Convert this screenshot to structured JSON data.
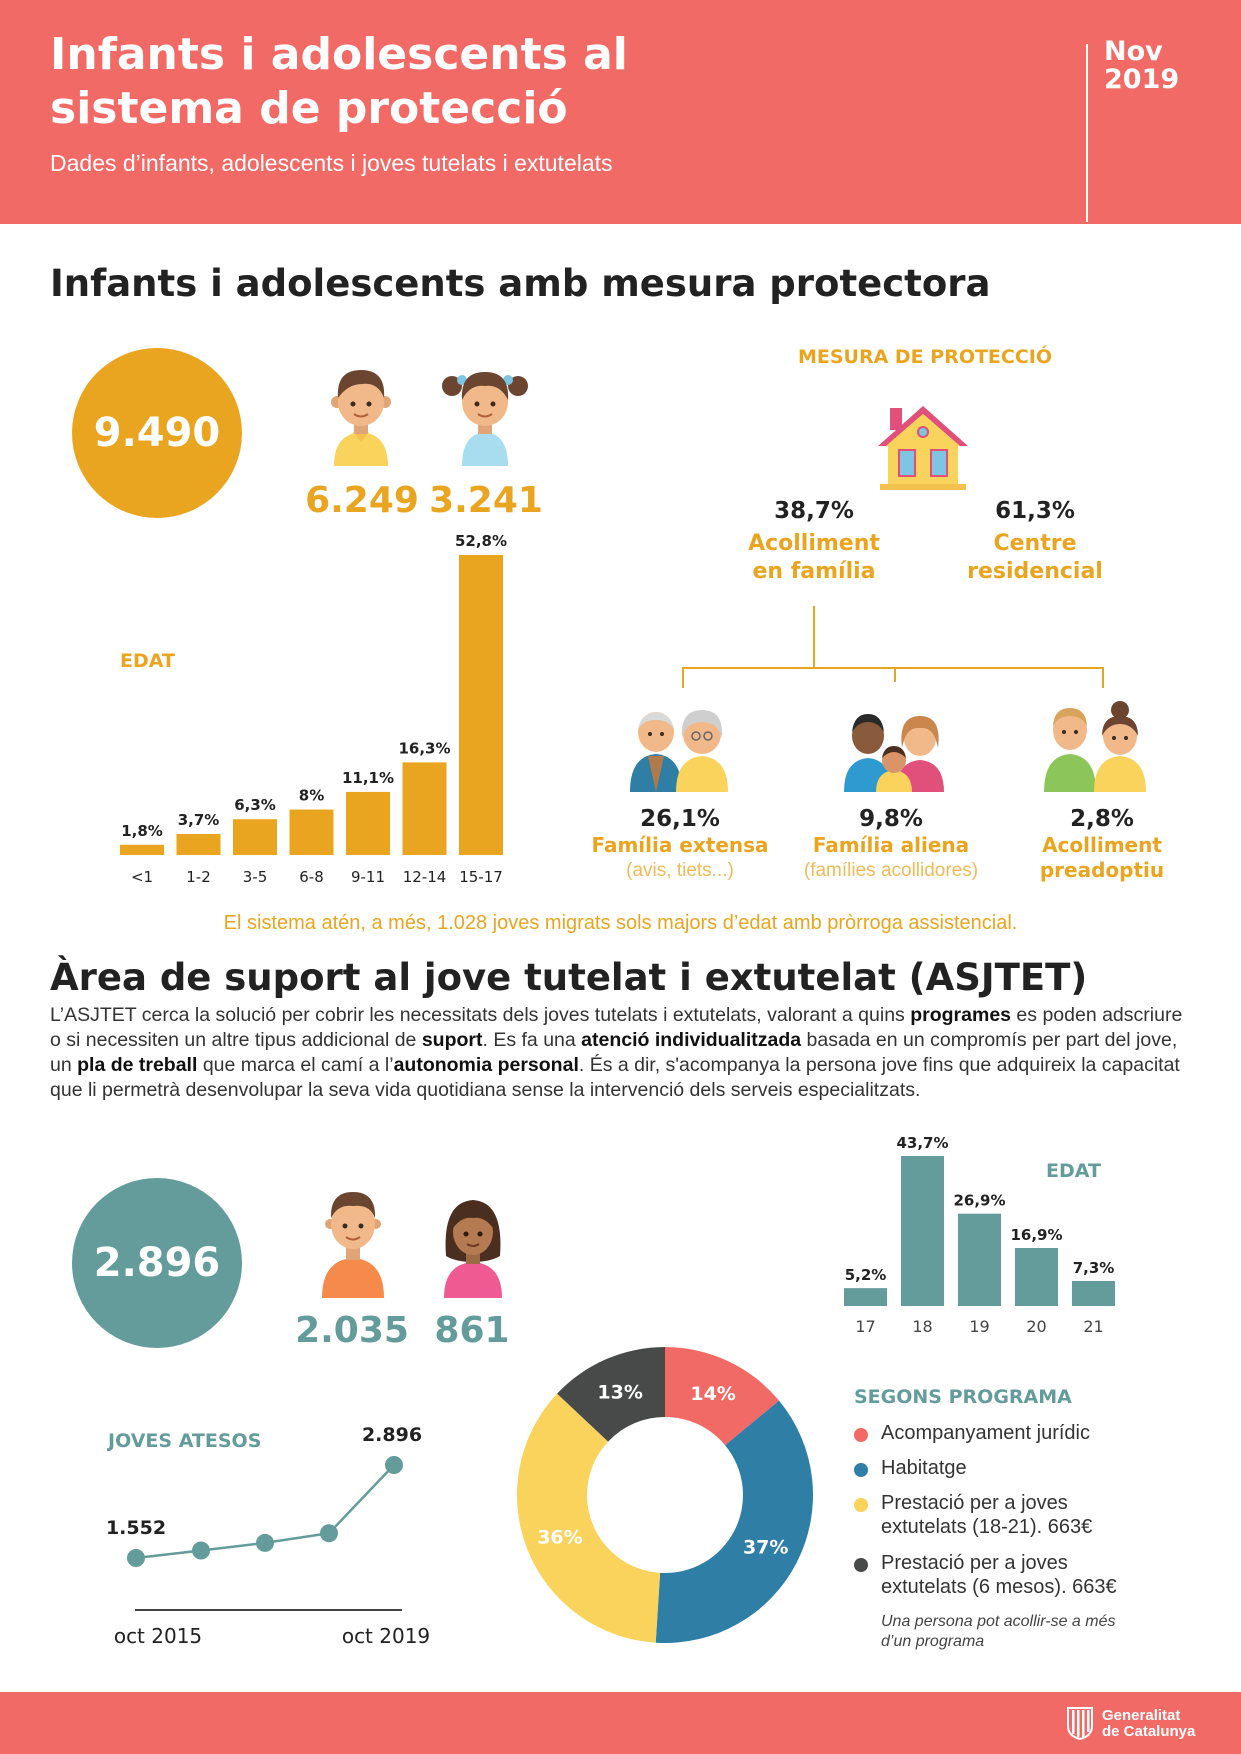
{
  "header": {
    "title": "Infants i adolescents al sistema de protecció",
    "subtitle": "Dades d’infants, adolescents i joves tutelats i extutelats",
    "date_line1": "Nov",
    "date_line2": "2019"
  },
  "section1": {
    "title": "Infants i adolescents amb mesura protectora",
    "total": "9.490",
    "boys": "6.249",
    "girls": "3.241",
    "age_label": "EDAT",
    "measure_label": "MESURA DE PROTECCIÓ",
    "family": {
      "pct": "38,7%",
      "label_line1": "Acolliment",
      "label_line2": "en família"
    },
    "residential": {
      "pct": "61,3%",
      "label_line1": "Centre",
      "label_line2": "residencial"
    },
    "sub": [
      {
        "pct": "26,1%",
        "label_line1": "Família extensa",
        "label_line2": "(avis, tiets...)"
      },
      {
        "pct": "9,8%",
        "label_line1": "Família aliena",
        "label_line2": "(famílies acollidores)"
      },
      {
        "pct": "2,8%",
        "label_line1": "Acolliment",
        "label_line2": "preadoptiu"
      }
    ],
    "note": "El sistema atén, a més, 1.028 joves migrats sols majors d’edat amb pròrroga assistencial."
  },
  "section2": {
    "title": "Àrea de suport al jove tutelat i extutelat (ASJTET)",
    "para": {
      "t1": "L’ASJTET cerca la solució per cobrir les necessitats dels joves tutelats i extutelats, valorant a quins ",
      "b1": "programes",
      "t2": " es poden adscriure o si necessiten un altre tipus addicional de ",
      "b2": "suport",
      "t3": ". Es fa una ",
      "b3": "atenció individualitzada",
      "t4": " basada en un compromís per part del jove, un ",
      "b4": "pla de treball",
      "t5": " que marca el camí a l’",
      "b5": "autonomia personal",
      "t6": ". És a dir, s'acompanya la persona jove fins que adquireix la capacitat que li permetrà desenvolupar la seva vida quotidiana sense la intervenció dels serveis especialitzats."
    },
    "total": "2.896",
    "boys": "2.035",
    "girls": "861",
    "age_label": "EDAT",
    "joves_label": "JOVES ATESOS",
    "program_label": "SEGONS PROGRAMA",
    "legend": [
      {
        "line1": "Acompanyament jurídic",
        "line2": ""
      },
      {
        "line1": "Habitatge",
        "line2": ""
      },
      {
        "line1": "Prestació per a  joves",
        "line2": "extutelats (18-21). 663€"
      },
      {
        "line1": "Prestació per a joves",
        "line2": "extutelats (6 mesos).  663€"
      }
    ],
    "legend_note_line1": "Una persona pot acollir-se a més",
    "legend_note_line2": "d’un programa"
  },
  "footer": {
    "logo_line1": "Generalitat",
    "logo_line2": "de Catalunya"
  },
  "colors": {
    "coral": "#f26a66",
    "orange": "#eaa520",
    "teal": "#639c9a",
    "blue": "#2e7ea6",
    "yellow": "#f9d35c",
    "dark": "#474a48"
  },
  "chart_data": [
    {
      "type": "bar",
      "title": "EDAT",
      "categories": [
        "<1",
        "1-2",
        "3-5",
        "6-8",
        "9-11",
        "12-14",
        "15-17"
      ],
      "values": [
        1.8,
        3.7,
        6.3,
        8,
        11.1,
        16.3,
        52.8
      ],
      "labels": [
        "1,8%",
        "3,7%",
        "6,3%",
        "8%",
        "11,1%",
        "16,3%",
        "52,8%"
      ],
      "ylim": [
        0,
        52.8
      ],
      "grid": false
    },
    {
      "type": "bar",
      "title": "EDAT",
      "categories": [
        "17",
        "18",
        "19",
        "20",
        "21"
      ],
      "values": [
        5.2,
        43.7,
        26.9,
        16.9,
        7.3
      ],
      "labels": [
        "5,2%",
        "43,7%",
        "26,9%",
        "16,9%",
        "7,3%"
      ],
      "ylim": [
        0,
        43.7
      ],
      "grid": false
    },
    {
      "type": "line",
      "title": "JOVES ATESOS",
      "x": [
        "oct 2015",
        "",
        "",
        "",
        "oct 2019"
      ],
      "values": [
        1552,
        null,
        null,
        null,
        2896
      ],
      "labels": [
        "1.552",
        "",
        "",
        "",
        "2.896"
      ],
      "estimated_values": [
        1552,
        1660,
        1770,
        1910,
        2896
      ],
      "grid": false
    },
    {
      "type": "pie",
      "title": "SEGONS PROGRAMA",
      "categories": [
        "Acompanyament jurídic",
        "Habitatge",
        "Prestació per a  joves extutelats (18-21). 663€",
        "Prestació per a joves extutelats (6 mesos).  663€"
      ],
      "values": [
        14,
        37,
        36,
        13
      ],
      "labels": [
        "14%",
        "37%",
        "36%",
        "13%"
      ],
      "colors": [
        "#f26a66",
        "#2e7ea6",
        "#f9d35c",
        "#474a48"
      ]
    }
  ]
}
